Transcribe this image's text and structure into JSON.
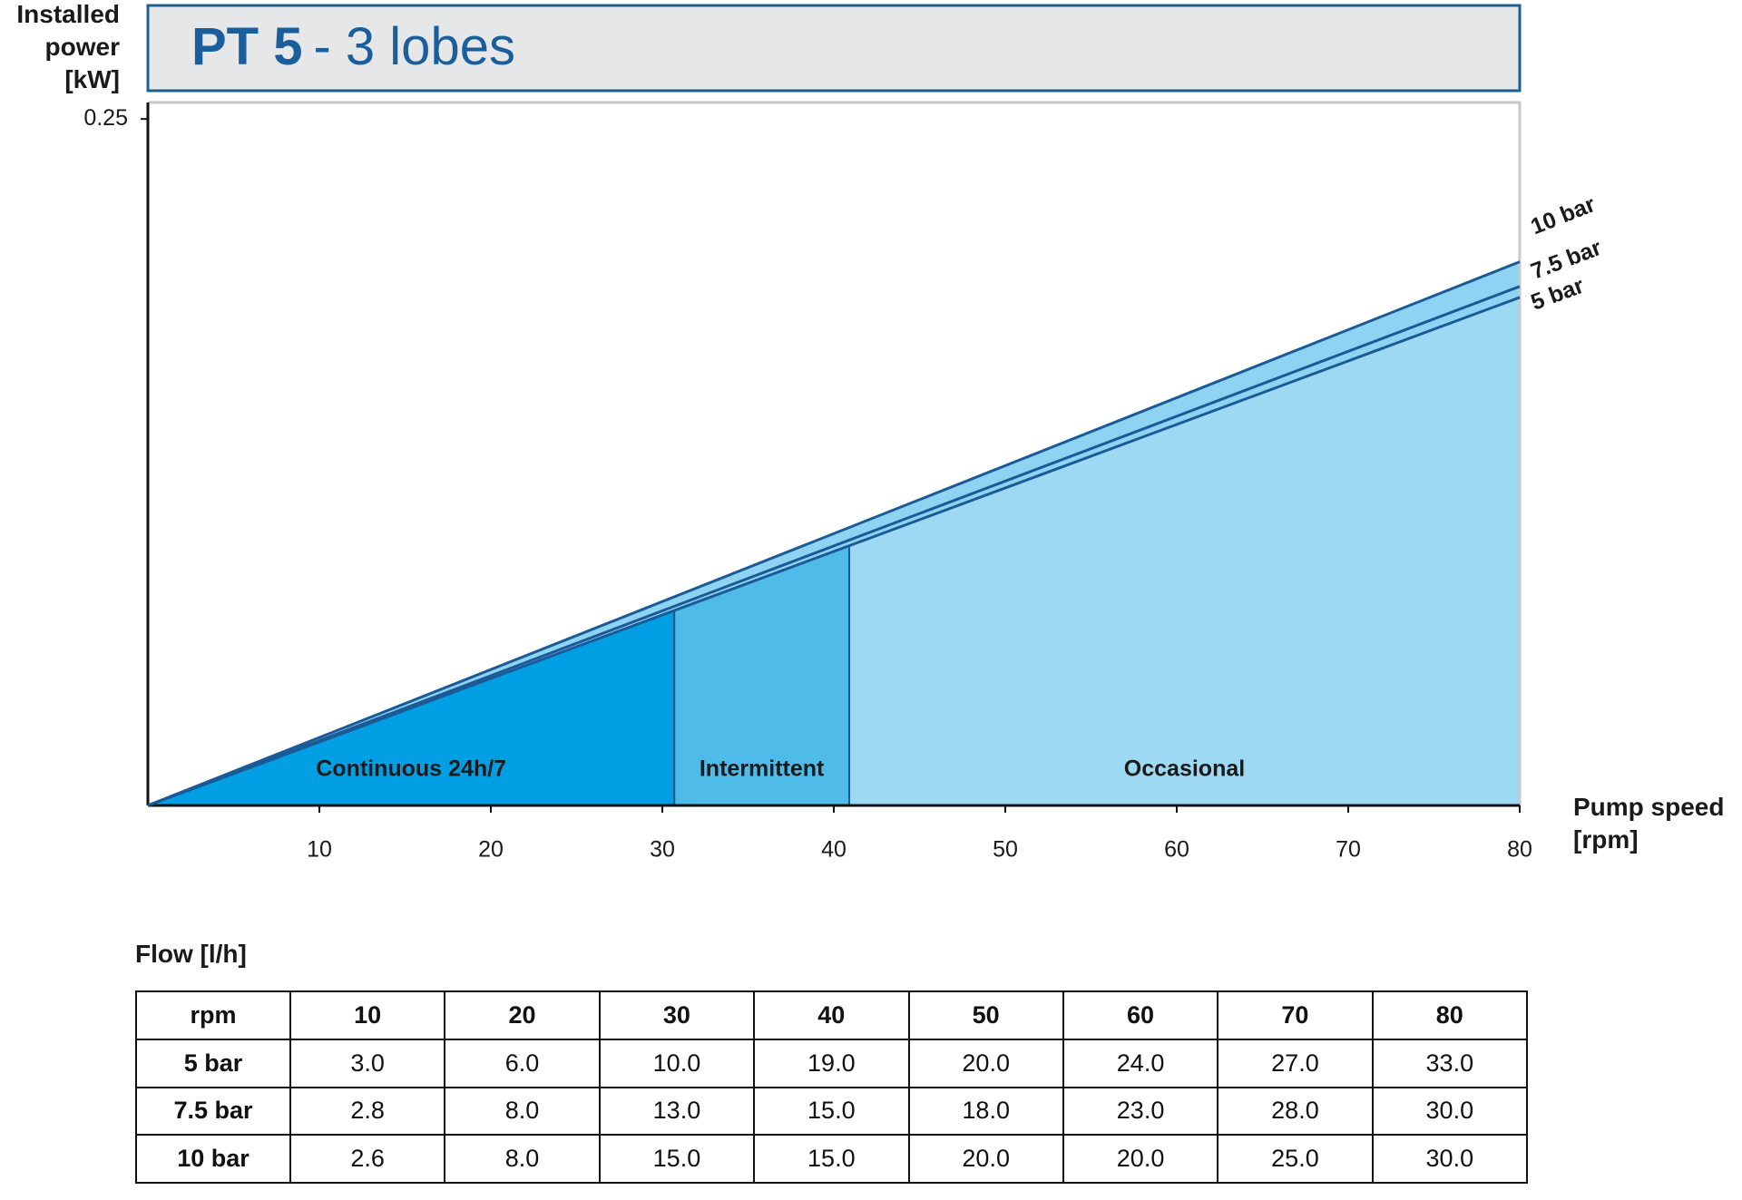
{
  "chart_data": {
    "type": "line",
    "title": "PT 5",
    "subtitle": "- 3 lobes",
    "y_label": "Installed power [kW]",
    "x_label": "Pump speed [rpm]",
    "xlim": [
      0,
      80
    ],
    "xticks": [
      10,
      20,
      30,
      40,
      50,
      60,
      70,
      80
    ],
    "ylim": [
      0,
      0.256
    ],
    "yticks": [
      0.25
    ],
    "grid": false,
    "series": [
      {
        "name": "10 bar",
        "color": "#1a5a96",
        "x": [
          0,
          80
        ],
        "values": [
          0,
          0.198
        ]
      },
      {
        "name": "7.5 bar",
        "color": "#1a5a96",
        "x": [
          0,
          80
        ],
        "values": [
          0,
          0.189
        ]
      },
      {
        "name": "5 bar",
        "color": "#1a5a96",
        "x": [
          0,
          80
        ],
        "values": [
          0,
          0.185
        ]
      }
    ],
    "band_color": "#8fd3f2",
    "zones": [
      {
        "label": "Continuous 24h/7",
        "start": 0,
        "end": 30.7,
        "color": "#009fe3"
      },
      {
        "label": "Intermittent",
        "start": 30.7,
        "end": 40.9,
        "color": "#4fbbe8"
      },
      {
        "label": "Occasional",
        "start": 40.9,
        "end": 80,
        "color": "#9dd9f3"
      }
    ]
  },
  "table": {
    "caption": "Flow [l/h]",
    "header": [
      "rpm",
      "10",
      "20",
      "30",
      "40",
      "50",
      "60",
      "70",
      "80"
    ],
    "rows": [
      [
        "5 bar",
        "3.0",
        "6.0",
        "10.0",
        "19.0",
        "20.0",
        "24.0",
        "27.0",
        "33.0"
      ],
      [
        "7.5 bar",
        "2.8",
        "8.0",
        "13.0",
        "15.0",
        "18.0",
        "23.0",
        "28.0",
        "30.0"
      ],
      [
        "10 bar",
        "2.6",
        "8.0",
        "15.0",
        "15.0",
        "20.0",
        "20.0",
        "25.0",
        "30.0"
      ]
    ]
  }
}
